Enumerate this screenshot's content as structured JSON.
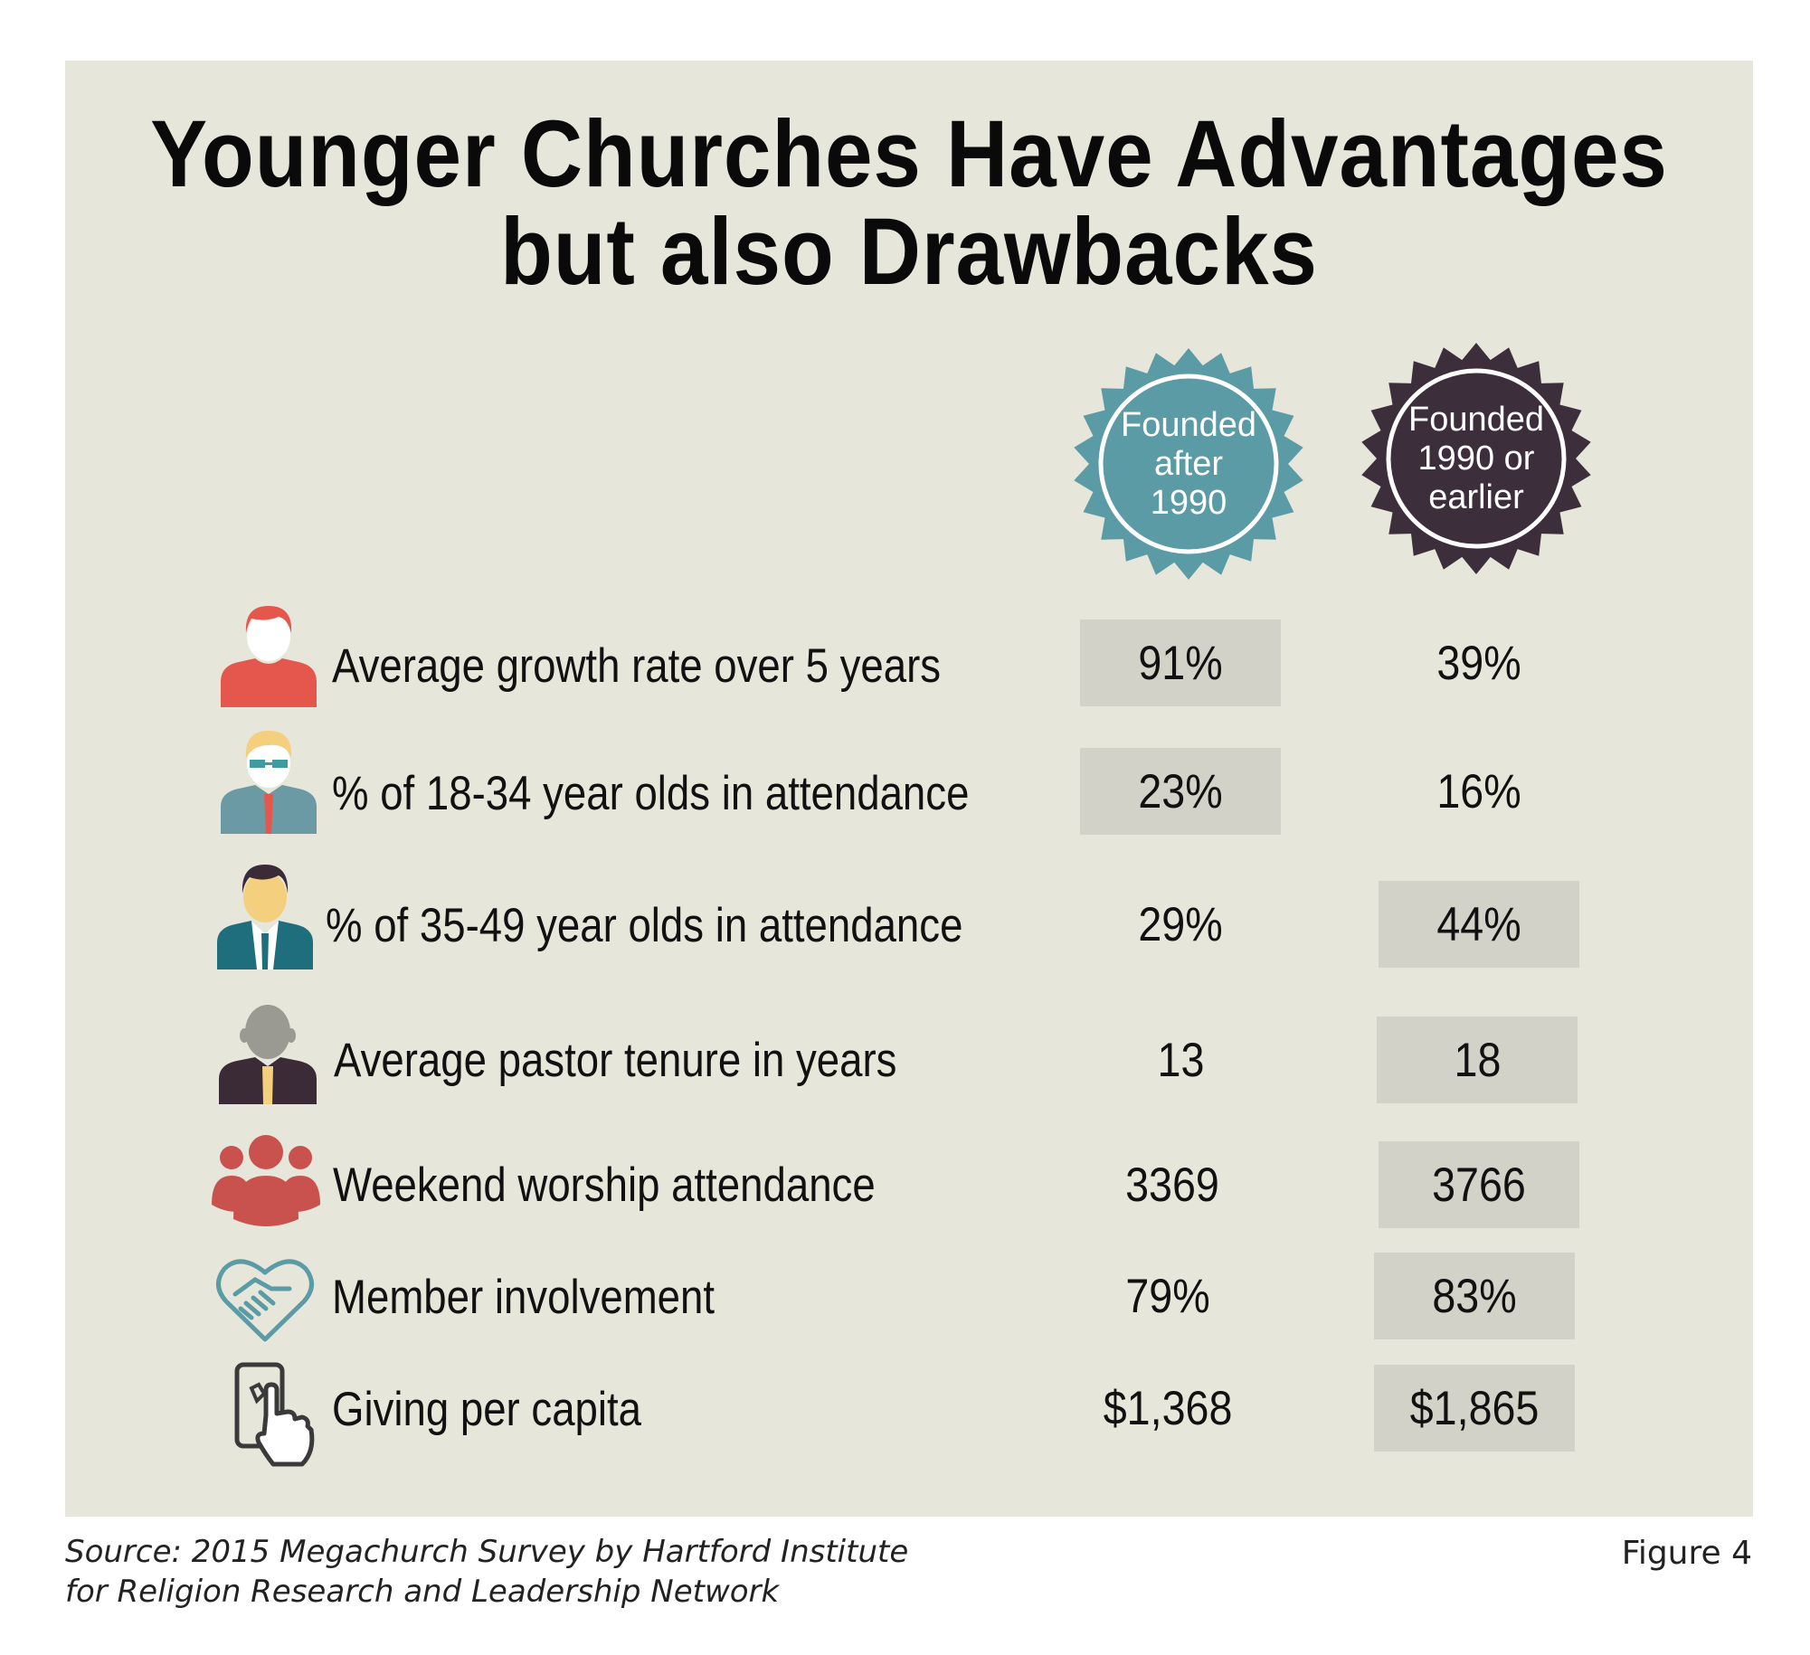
{
  "title_line1": "Younger Churches Have Advantages",
  "title_line2": "but also Drawbacks",
  "badges": [
    {
      "lines": [
        "Founded",
        "after",
        "1990"
      ],
      "color": "#5b9ba6"
    },
    {
      "lines": [
        "Founded",
        "1990 or",
        "earlier"
      ],
      "color": "#3d2e3c"
    }
  ],
  "rows": [
    {
      "label": "Average growth rate over 5 years",
      "icon": "red-person-icon",
      "after": "91%",
      "before": "39%",
      "highlight": "after"
    },
    {
      "label": "% of 18-34 year olds in attendance",
      "icon": "young-man-with-glasses-icon",
      "after": "23%",
      "before": "16%",
      "highlight": "after"
    },
    {
      "label": "% of 35-49 year olds in attendance",
      "icon": "middle-aged-man-icon",
      "after": "29%",
      "before": "44%",
      "highlight": "before"
    },
    {
      "label": "Average pastor tenure in years",
      "icon": "pastor-icon",
      "after": "13",
      "before": "18",
      "highlight": "before"
    },
    {
      "label": "Weekend worship attendance",
      "icon": "group-icon",
      "after": "3369",
      "before": "3766",
      "highlight": "before"
    },
    {
      "label": "Member involvement",
      "icon": "heart-handshake-icon",
      "after": "79%",
      "before": "83%",
      "highlight": "before"
    },
    {
      "label": "Giving per capita",
      "icon": "phone-tap-icon",
      "after": "$1,368",
      "before": "$1,865",
      "highlight": "before"
    }
  ],
  "source_line1": "Source: 2015 Megachurch Survey by Hartford Institute",
  "source_line2": "for Religion Research and Leadership Network",
  "figure_label": "Figure 4",
  "colors": {
    "panel": "#e6e6da",
    "highlight": "#d2d2c9",
    "teal_badge": "#5b9ba6",
    "dark_badge": "#3d2e3c"
  },
  "chart_data": {
    "type": "table",
    "title": "Younger Churches Have Advantages but also Drawbacks",
    "columns": [
      "Founded after 1990",
      "Founded 1990 or earlier"
    ],
    "rows": [
      {
        "metric": "Average growth rate over 5 years",
        "values": [
          "91%",
          "39%"
        ]
      },
      {
        "metric": "% of 18-34 year olds in attendance",
        "values": [
          "23%",
          "16%"
        ]
      },
      {
        "metric": "% of 35-49 year olds in attendance",
        "values": [
          "29%",
          "44%"
        ]
      },
      {
        "metric": "Average pastor tenure in years",
        "values": [
          "13",
          "18"
        ]
      },
      {
        "metric": "Weekend worship attendance",
        "values": [
          "3369",
          "3766"
        ]
      },
      {
        "metric": "Member involvement",
        "values": [
          "79%",
          "83%"
        ]
      },
      {
        "metric": "Giving per capita",
        "values": [
          "$1,368",
          "$1,865"
        ]
      }
    ]
  }
}
